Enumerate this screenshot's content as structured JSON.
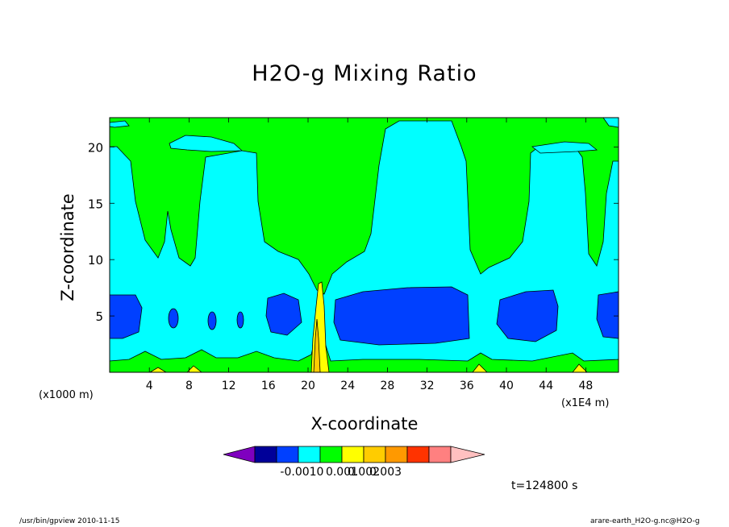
{
  "chart_data": {
    "type": "heatmap",
    "title": "H2O-g Mixing Ratio",
    "xlabel": "X-coordinate",
    "ylabel": "Z-coordinate",
    "x_unit_left": "(x1000 m)",
    "x_unit_right": "(x1E4 m)",
    "x_ticks": [
      4,
      8,
      12,
      16,
      20,
      24,
      28,
      32,
      36,
      40,
      44,
      48
    ],
    "y_ticks": [
      5,
      10,
      15,
      20
    ],
    "xlim": [
      0,
      51.3
    ],
    "ylim": [
      0,
      22.6
    ],
    "colorbar": {
      "labels": [
        "-0.001",
        "0",
        "0.001",
        "0.002",
        "0.003"
      ],
      "colors": [
        "#7f00bf",
        "#000099",
        "#0040ff",
        "#00ffff",
        "#00ff00",
        "#ffff00",
        "#ffcc00",
        "#ff9900",
        "#ff3300",
        "#ff8080",
        "#ffc0c0"
      ]
    },
    "level_colors": {
      "top_band": "#00ffff",
      "upper": "#00ff00",
      "middle": "#00ffff",
      "low_core": "#0040ff",
      "surface_min": "#00ff00",
      "surface_max": "#ffff00"
    },
    "time_label": "t=124800 s"
  },
  "footer": {
    "left": "/usr/bin/gpview   2010-11-15",
    "right": "arare-earth_H2O-g.nc@H2O-g"
  }
}
